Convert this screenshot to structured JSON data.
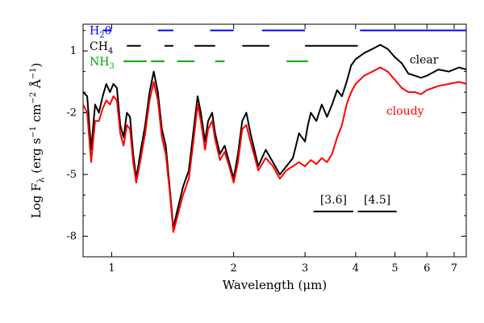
{
  "chart_data": {
    "type": "line",
    "xscale": "log",
    "xlim": [
      0.85,
      7.5
    ],
    "ylim": [
      -9.0,
      2.3
    ],
    "xlabel": "Wavelength (μm)",
    "ylabel": "Log Fλ (erg s⁻¹ cm⁻² Å⁻¹)",
    "ylabel_parts": {
      "main": "Log F",
      "sub": "λ",
      "rest": " (erg s",
      "e1": "−1",
      "mid": " cm",
      "e2": "−2",
      "mid2": " Å",
      "e3": "−1",
      "end": ")"
    },
    "xticks": [
      1,
      2,
      3,
      4,
      5,
      6,
      7
    ],
    "xtick_labels": [
      "1",
      "2",
      "3",
      "4",
      "5",
      "6",
      "7"
    ],
    "yticks": [
      1,
      -2,
      -5,
      -8
    ],
    "ytick_labels": [
      "1",
      "-2",
      "-5",
      "-8"
    ],
    "series": [
      {
        "name": "clear",
        "color": "#000000",
        "points": [
          [
            0.85,
            -1.0
          ],
          [
            0.87,
            -1.2
          ],
          [
            0.89,
            -3.8
          ],
          [
            0.91,
            -1.6
          ],
          [
            0.93,
            -2.0
          ],
          [
            0.95,
            -1.2
          ],
          [
            0.97,
            -0.6
          ],
          [
            0.99,
            -1.0
          ],
          [
            1.01,
            -0.6
          ],
          [
            1.03,
            -0.8
          ],
          [
            1.05,
            -2.6
          ],
          [
            1.07,
            -3.2
          ],
          [
            1.09,
            -2.0
          ],
          [
            1.11,
            -2.2
          ],
          [
            1.13,
            -4.0
          ],
          [
            1.15,
            -5.2
          ],
          [
            1.18,
            -3.8
          ],
          [
            1.21,
            -2.6
          ],
          [
            1.24,
            -1.0
          ],
          [
            1.27,
            0.0
          ],
          [
            1.3,
            -1.0
          ],
          [
            1.33,
            -2.8
          ],
          [
            1.36,
            -3.6
          ],
          [
            1.39,
            -5.6
          ],
          [
            1.42,
            -7.6
          ],
          [
            1.45,
            -6.8
          ],
          [
            1.5,
            -5.6
          ],
          [
            1.55,
            -4.8
          ],
          [
            1.6,
            -2.5
          ],
          [
            1.63,
            -1.2
          ],
          [
            1.66,
            -2.0
          ],
          [
            1.7,
            -3.4
          ],
          [
            1.73,
            -2.4
          ],
          [
            1.77,
            -2.0
          ],
          [
            1.8,
            -3.0
          ],
          [
            1.85,
            -4.0
          ],
          [
            1.9,
            -3.6
          ],
          [
            1.95,
            -4.4
          ],
          [
            2.0,
            -5.2
          ],
          [
            2.05,
            -4.0
          ],
          [
            2.1,
            -2.4
          ],
          [
            2.15,
            -2.0
          ],
          [
            2.2,
            -3.0
          ],
          [
            2.3,
            -4.6
          ],
          [
            2.4,
            -3.8
          ],
          [
            2.5,
            -4.4
          ],
          [
            2.6,
            -5.0
          ],
          [
            2.7,
            -4.6
          ],
          [
            2.8,
            -4.2
          ],
          [
            2.9,
            -3.0
          ],
          [
            3.0,
            -3.4
          ],
          [
            3.05,
            -2.6
          ],
          [
            3.1,
            -2.0
          ],
          [
            3.2,
            -2.4
          ],
          [
            3.3,
            -1.6
          ],
          [
            3.4,
            -2.2
          ],
          [
            3.5,
            -1.6
          ],
          [
            3.6,
            -0.9
          ],
          [
            3.7,
            -1.2
          ],
          [
            3.8,
            -0.5
          ],
          [
            3.9,
            0.3
          ],
          [
            4.0,
            0.6
          ],
          [
            4.2,
            0.9
          ],
          [
            4.4,
            1.1
          ],
          [
            4.6,
            1.3
          ],
          [
            4.8,
            1.1
          ],
          [
            5.0,
            0.7
          ],
          [
            5.2,
            0.4
          ],
          [
            5.4,
            -0.1
          ],
          [
            5.6,
            -0.2
          ],
          [
            5.8,
            -0.3
          ],
          [
            6.0,
            -0.2
          ],
          [
            6.4,
            0.1
          ],
          [
            6.8,
            0.0
          ],
          [
            7.2,
            0.2
          ],
          [
            7.5,
            0.1
          ]
        ]
      },
      {
        "name": "cloudy",
        "color": "#ff0000",
        "points": [
          [
            0.85,
            -1.6
          ],
          [
            0.87,
            -2.0
          ],
          [
            0.89,
            -4.4
          ],
          [
            0.91,
            -2.4
          ],
          [
            0.93,
            -2.4
          ],
          [
            0.95,
            -1.8
          ],
          [
            0.97,
            -1.4
          ],
          [
            0.99,
            -1.6
          ],
          [
            1.01,
            -1.2
          ],
          [
            1.03,
            -1.4
          ],
          [
            1.05,
            -3.0
          ],
          [
            1.07,
            -3.6
          ],
          [
            1.09,
            -2.6
          ],
          [
            1.11,
            -2.8
          ],
          [
            1.13,
            -4.4
          ],
          [
            1.15,
            -5.4
          ],
          [
            1.18,
            -4.2
          ],
          [
            1.21,
            -3.0
          ],
          [
            1.24,
            -1.4
          ],
          [
            1.27,
            -0.5
          ],
          [
            1.3,
            -1.4
          ],
          [
            1.33,
            -3.2
          ],
          [
            1.36,
            -4.0
          ],
          [
            1.39,
            -5.8
          ],
          [
            1.42,
            -7.8
          ],
          [
            1.45,
            -7.1
          ],
          [
            1.5,
            -6.0
          ],
          [
            1.55,
            -5.2
          ],
          [
            1.6,
            -3.0
          ],
          [
            1.63,
            -1.6
          ],
          [
            1.66,
            -2.4
          ],
          [
            1.7,
            -3.8
          ],
          [
            1.73,
            -2.8
          ],
          [
            1.77,
            -2.4
          ],
          [
            1.8,
            -3.3
          ],
          [
            1.85,
            -4.3
          ],
          [
            1.9,
            -3.9
          ],
          [
            1.95,
            -4.6
          ],
          [
            2.0,
            -5.4
          ],
          [
            2.05,
            -4.4
          ],
          [
            2.1,
            -2.8
          ],
          [
            2.15,
            -2.6
          ],
          [
            2.2,
            -3.4
          ],
          [
            2.3,
            -4.8
          ],
          [
            2.4,
            -4.2
          ],
          [
            2.5,
            -4.6
          ],
          [
            2.6,
            -5.2
          ],
          [
            2.7,
            -4.8
          ],
          [
            2.8,
            -4.6
          ],
          [
            2.9,
            -4.4
          ],
          [
            3.0,
            -4.6
          ],
          [
            3.1,
            -4.3
          ],
          [
            3.2,
            -4.5
          ],
          [
            3.3,
            -4.2
          ],
          [
            3.4,
            -4.4
          ],
          [
            3.5,
            -4.0
          ],
          [
            3.6,
            -3.2
          ],
          [
            3.7,
            -2.6
          ],
          [
            3.8,
            -1.6
          ],
          [
            3.9,
            -1.0
          ],
          [
            4.0,
            -0.6
          ],
          [
            4.2,
            -0.2
          ],
          [
            4.4,
            0.0
          ],
          [
            4.6,
            0.2
          ],
          [
            4.8,
            0.0
          ],
          [
            5.0,
            -0.4
          ],
          [
            5.2,
            -0.8
          ],
          [
            5.4,
            -1.0
          ],
          [
            5.6,
            -1.0
          ],
          [
            5.8,
            -1.1
          ],
          [
            6.0,
            -0.9
          ],
          [
            6.4,
            -0.7
          ],
          [
            6.8,
            -0.6
          ],
          [
            7.2,
            -0.5
          ],
          [
            7.5,
            -0.6
          ]
        ]
      }
    ],
    "molecules": [
      {
        "name": "H2O",
        "label_main": "H",
        "label_sub": "2",
        "label_tail": "0",
        "color": "#0000ff",
        "y": 2.0,
        "segments": [
          [
            0.95,
            1.0
          ],
          [
            1.3,
            1.42
          ],
          [
            1.75,
            2.0
          ],
          [
            2.35,
            3.0
          ],
          [
            4.1,
            7.5
          ]
        ]
      },
      {
        "name": "CH4",
        "label_main": "CH",
        "label_sub": "4",
        "label_tail": "",
        "color": "#000000",
        "y": 1.25,
        "segments": [
          [
            1.09,
            1.18
          ],
          [
            1.35,
            1.42
          ],
          [
            1.6,
            1.8
          ],
          [
            2.1,
            2.45
          ],
          [
            3.0,
            4.05
          ]
        ]
      },
      {
        "name": "NH3",
        "label_main": "NH",
        "label_sub": "3",
        "label_tail": "",
        "color": "#00aa00",
        "y": 0.5,
        "segments": [
          [
            1.07,
            1.22
          ],
          [
            1.25,
            1.35
          ],
          [
            1.45,
            1.6
          ],
          [
            1.8,
            1.9
          ],
          [
            2.7,
            3.05
          ]
        ]
      }
    ],
    "bands": [
      {
        "label": "[3.6]",
        "x": [
          3.15,
          3.95
        ],
        "y": -6.8
      },
      {
        "label": "[4.5]",
        "x": [
          4.05,
          5.05
        ],
        "y": -6.8
      }
    ],
    "annotations": [
      {
        "text": "clear",
        "x": 5.9,
        "y": 0.6,
        "color": "#000000"
      },
      {
        "text": "cloudy",
        "x": 5.3,
        "y": -1.9,
        "color": "#ff0000"
      }
    ]
  }
}
